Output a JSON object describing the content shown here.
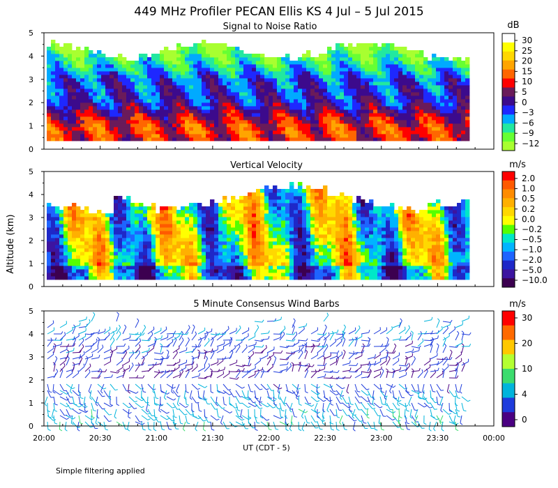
{
  "title": "449 MHz Profiler PECAN Ellis KS  4 Jul –  5 Jul 2015",
  "ylabel": "Altitude (km)",
  "xlabel": "UT  (CDT - 5)",
  "note": "Simple filtering applied",
  "x_ticks": [
    "20:00",
    "20:30",
    "21:00",
    "21:30",
    "22:00",
    "22:30",
    "23:00",
    "23:30",
    "00:00"
  ],
  "y_ticks": [
    "0",
    "1",
    "2",
    "3",
    "4",
    "5"
  ],
  "panels": [
    {
      "id": "snr",
      "title": "Signal to Noise Ratio",
      "unit": "dB",
      "colorbar_labels": [
        "30",
        "25",
        "20",
        "15",
        "10",
        "5",
        "0",
        "−3",
        "−6",
        "−9",
        "−12"
      ],
      "colorbar_colors": [
        "#ffffff",
        "#ffff00",
        "#ffd700",
        "#ffa500",
        "#ff6600",
        "#ff0000",
        "#6a1b5a",
        "#3c0a8c",
        "#1e28ff",
        "#00aaff",
        "#22e8a0",
        "#66ff33",
        "#a8ff30"
      ]
    },
    {
      "id": "w",
      "title": "Vertical Velocity",
      "unit": "m/s",
      "colorbar_labels": [
        "2.0",
        "1.0",
        "0.5",
        "0.2",
        "0.0",
        "−0.2",
        "−0.5",
        "−1.0",
        "−2.0",
        "−5.0",
        "−10.0"
      ],
      "colorbar_colors": [
        "#ff0000",
        "#ff5a00",
        "#ff8c00",
        "#ffb000",
        "#ffd800",
        "#ffff00",
        "#55ff00",
        "#00e8c8",
        "#00b4ff",
        "#1e64ff",
        "#1e28c8",
        "#3c14a0",
        "#3c0050"
      ]
    },
    {
      "id": "wind",
      "title": "5 Minute Consensus Wind Barbs",
      "unit": "m/s",
      "colorbar_labels": [
        "30",
        "20",
        "10",
        "4",
        "0"
      ],
      "colorbar_colors": [
        "#ff0000",
        "#ff6a00",
        "#ffc800",
        "#b4ff32",
        "#3cdc6e",
        "#00b4dc",
        "#1e3cdc",
        "#4b0082"
      ]
    }
  ],
  "chart_data": [
    {
      "type": "heatmap",
      "title": "Signal to Noise Ratio",
      "value_unit": "dB",
      "x_label": "UT (CDT - 5)",
      "x_range": [
        "20:00",
        "00:00"
      ],
      "data_x_range": [
        "20:00",
        "23:45"
      ],
      "y_label": "Altitude (km)",
      "y_range": [
        0,
        5
      ],
      "color_scale": [
        -12,
        -9,
        -6,
        -3,
        0,
        5,
        10,
        15,
        20,
        25,
        30
      ],
      "profile_by_altitude_km": [
        {
          "alt": 0.3,
          "snr": 12
        },
        {
          "alt": 0.7,
          "snr": 14
        },
        {
          "alt": 1.0,
          "snr": 13
        },
        {
          "alt": 1.5,
          "snr": 8
        },
        {
          "alt": 2.0,
          "snr": 3
        },
        {
          "alt": 2.5,
          "snr": 2
        },
        {
          "alt": 3.0,
          "snr": 1
        },
        {
          "alt": 3.3,
          "snr": -3
        },
        {
          "alt": 3.7,
          "snr": -6
        },
        {
          "alt": 4.1,
          "snr": -9
        },
        {
          "alt": 4.5,
          "snr": -12
        }
      ]
    },
    {
      "type": "heatmap",
      "title": "Vertical Velocity",
      "value_unit": "m/s",
      "x_label": "UT (CDT - 5)",
      "x_range": [
        "20:00",
        "00:00"
      ],
      "data_x_range": [
        "20:00",
        "23:45"
      ],
      "y_label": "Altitude (km)",
      "y_range": [
        0,
        5
      ],
      "data_top_km": 4.1,
      "color_scale": [
        -10,
        -5,
        -2,
        -1,
        -0.5,
        -0.2,
        0,
        0.2,
        0.5,
        1,
        2
      ]
    },
    {
      "type": "scatter",
      "subtype": "wind_barbs",
      "title": "5 Minute Consensus Wind Barbs",
      "value_unit": "m/s",
      "interval_minutes": 5,
      "x_label": "UT (CDT - 5)",
      "x_range": [
        "20:00",
        "00:00"
      ],
      "data_x_range": [
        "20:00",
        "23:45"
      ],
      "y_label": "Altitude (km)",
      "y_range": [
        0,
        5
      ],
      "color_scale": [
        0,
        4,
        10,
        20,
        30
      ],
      "speed_by_altitude_km": [
        {
          "alt": 0.5,
          "speed": 10
        },
        {
          "alt": 1.5,
          "speed": 8
        },
        {
          "alt": 2.4,
          "speed": 3
        },
        {
          "alt": 3.0,
          "speed": 5
        },
        {
          "alt": 4.0,
          "speed": 8
        },
        {
          "alt": 4.7,
          "speed": 10
        }
      ]
    }
  ]
}
